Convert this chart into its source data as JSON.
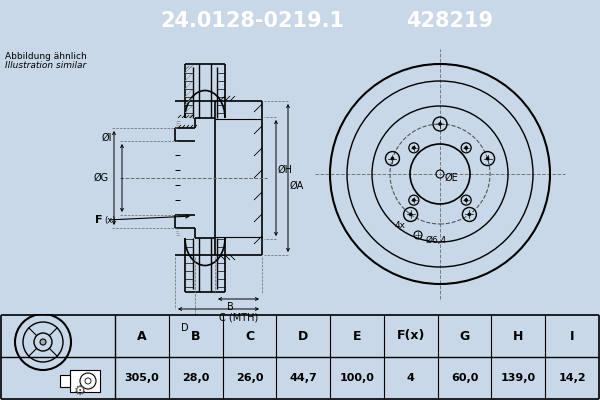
{
  "title_part1": "24.0128-0219.1",
  "title_part2": "428219",
  "title_bg": "#1a5276",
  "title_fg": "white",
  "subtitle1": "Abbildung ähnlich",
  "subtitle2": "Illustration similar",
  "col_headers": [
    "A",
    "B",
    "C",
    "D",
    "E",
    "F(x)",
    "G",
    "H",
    "I"
  ],
  "col_values": [
    "305,0",
    "28,0",
    "26,0",
    "44,7",
    "100,0",
    "4",
    "60,0",
    "139,0",
    "14,2"
  ],
  "bg_color": "#c8d8e8",
  "draw_bg": "#ffffff",
  "line_color": "#000000",
  "hatch_color": "#000000",
  "dash_color": "#666666"
}
